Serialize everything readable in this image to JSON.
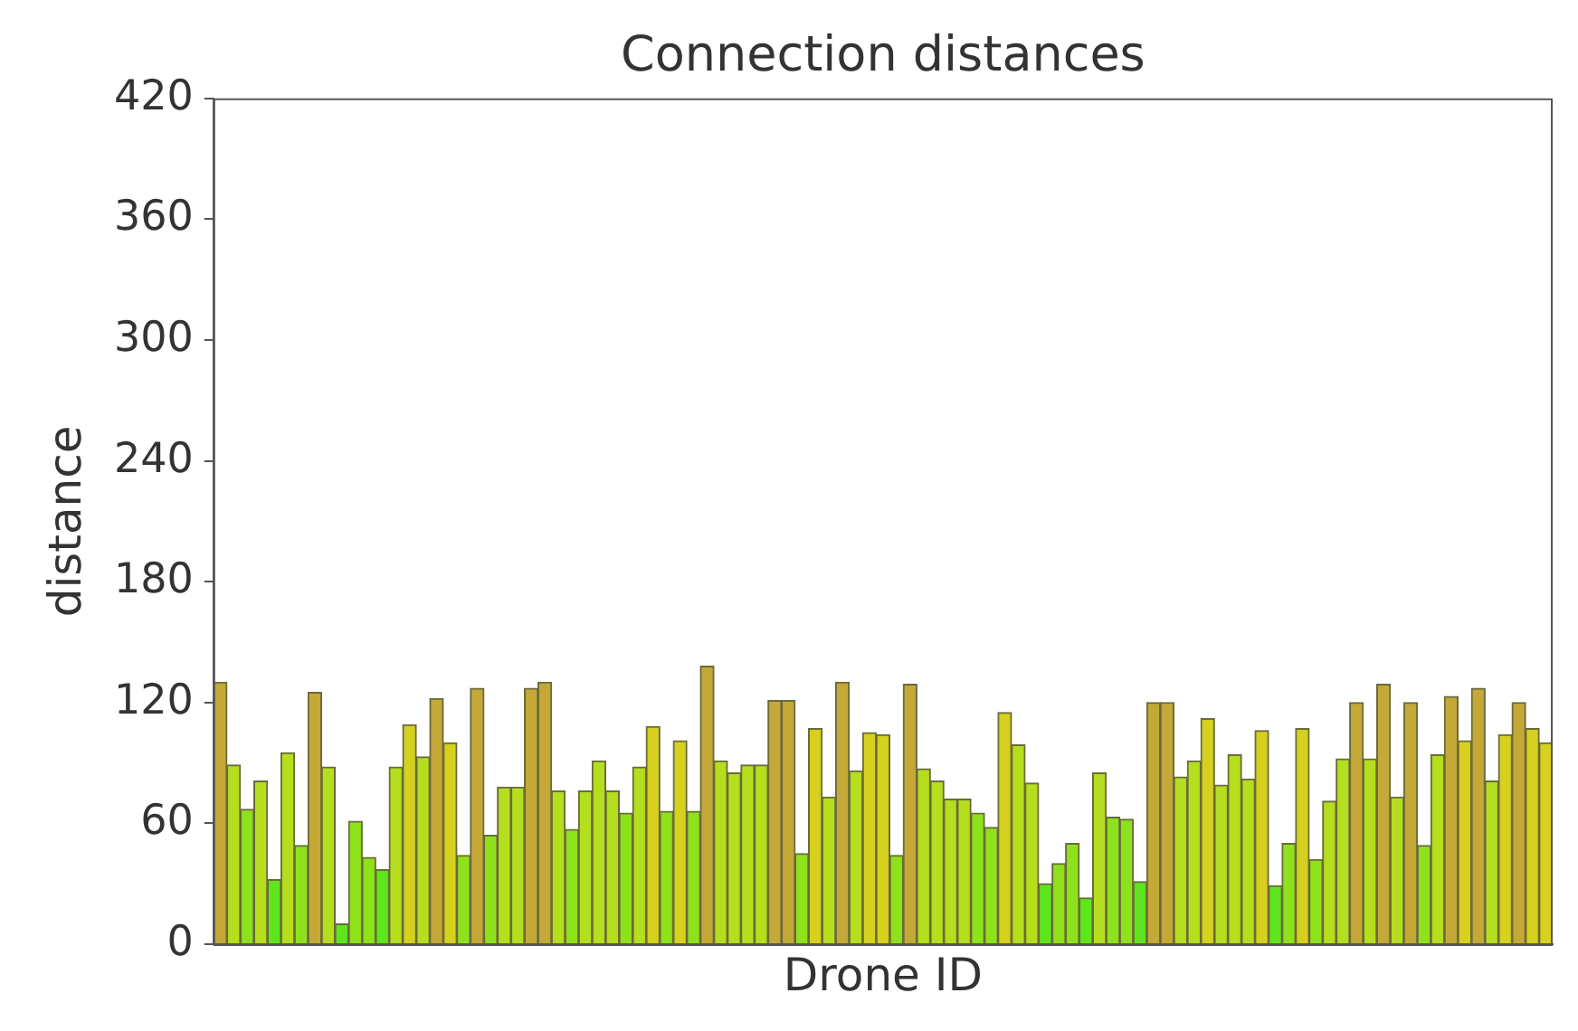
{
  "chart_data": {
    "type": "bar",
    "title": "Connection distances",
    "xlabel": "Drone ID",
    "ylabel": "distance",
    "categories": [
      null,
      null,
      null,
      null,
      null,
      null,
      null,
      null,
      null,
      null,
      null,
      null,
      null,
      null,
      null,
      null,
      null,
      null,
      null,
      null,
      null,
      null,
      null,
      null,
      null,
      null,
      null,
      null,
      null,
      null,
      null,
      null,
      null,
      null,
      null,
      null,
      null,
      null,
      null,
      null,
      null,
      null,
      null,
      null,
      null,
      null,
      null,
      null,
      null,
      null,
      null,
      null,
      null,
      null,
      null,
      null,
      null,
      null,
      null,
      null,
      null,
      null,
      null,
      null,
      null,
      null,
      null,
      null,
      null,
      null,
      null,
      null,
      null,
      null,
      null,
      null,
      null,
      null,
      null,
      null,
      null,
      null,
      null,
      null,
      null,
      null,
      null,
      null,
      null,
      null,
      null,
      null,
      null,
      null,
      null,
      null,
      null,
      null,
      null
    ],
    "values": [
      130,
      89,
      67,
      81,
      32,
      95,
      49,
      125,
      88,
      10,
      61,
      43,
      37,
      88,
      109,
      93,
      122,
      100,
      44,
      127,
      54,
      78,
      78,
      127,
      130,
      76,
      57,
      76,
      91,
      76,
      65,
      88,
      108,
      66,
      101,
      66,
      138,
      91,
      85,
      89,
      89,
      121,
      121,
      45,
      107,
      73,
      130,
      86,
      105,
      104,
      44,
      129,
      87,
      81,
      72,
      72,
      65,
      58,
      115,
      99,
      80,
      30,
      40,
      50,
      23,
      85,
      63,
      62,
      31,
      120,
      120,
      83,
      91,
      112,
      79,
      94,
      82,
      106,
      29,
      50,
      107,
      42,
      71,
      92,
      120,
      92,
      129,
      73,
      120,
      49,
      94,
      123,
      101,
      127,
      81,
      104,
      120,
      107,
      100
    ],
    "colors": [
      "#c4a838",
      "#b4de1e",
      "#8ee21c",
      "#b4de1e",
      "#5ee61c",
      "#b4de1e",
      "#8ee21c",
      "#c4a838",
      "#b4de1e",
      "#5ee61c",
      "#8ee21c",
      "#8ee21c",
      "#5ee61c",
      "#b4de1e",
      "#d6d01e",
      "#b4de1e",
      "#c4a838",
      "#d6d01e",
      "#8ee21c",
      "#c4a838",
      "#8ee21c",
      "#b4de1e",
      "#b4de1e",
      "#c4a838",
      "#c4a838",
      "#b4de1e",
      "#8ee21c",
      "#b4de1e",
      "#b4de1e",
      "#b4de1e",
      "#8ee21c",
      "#b4de1e",
      "#d6d01e",
      "#8ee21c",
      "#d6d01e",
      "#8ee21c",
      "#c4a838",
      "#b4de1e",
      "#b4de1e",
      "#b4de1e",
      "#b4de1e",
      "#c4a838",
      "#c4a838",
      "#8ee21c",
      "#d6d01e",
      "#b4de1e",
      "#c4a838",
      "#b4de1e",
      "#d6d01e",
      "#d6d01e",
      "#8ee21c",
      "#c4a838",
      "#b4de1e",
      "#b4de1e",
      "#b4de1e",
      "#b4de1e",
      "#8ee21c",
      "#8ee21c",
      "#d6d01e",
      "#b4de1e",
      "#b4de1e",
      "#5ee61c",
      "#8ee21c",
      "#8ee21c",
      "#5ee61c",
      "#b4de1e",
      "#8ee21c",
      "#8ee21c",
      "#5ee61c",
      "#c4a838",
      "#c4a838",
      "#b4de1e",
      "#b4de1e",
      "#d6d01e",
      "#b4de1e",
      "#b4de1e",
      "#b4de1e",
      "#d6d01e",
      "#5ee61c",
      "#8ee21c",
      "#d6d01e",
      "#8ee21c",
      "#b4de1e",
      "#b4de1e",
      "#c4a838",
      "#b4de1e",
      "#c4a838",
      "#b4de1e",
      "#c4a838",
      "#8ee21c",
      "#b4de1e",
      "#c4a838",
      "#d6d01e",
      "#c4a838",
      "#b4de1e",
      "#d6d01e",
      "#c4a838",
      "#d6d01e",
      "#d6d01e"
    ],
    "ylim": [
      0,
      420
    ],
    "yticks": [
      0,
      60,
      120,
      180,
      240,
      300,
      360,
      420
    ],
    "tick_labels": "y"
  }
}
